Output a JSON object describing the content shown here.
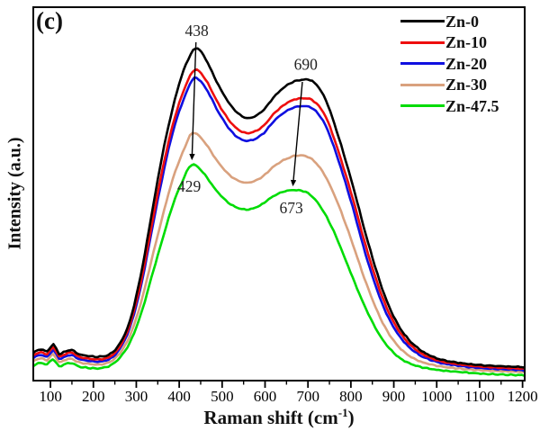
{
  "panel_label": "(c)",
  "chart_data": {
    "type": "line",
    "title": "",
    "xlabel": {
      "main": "Raman shift (cm",
      "sup": "-1",
      "close": ")"
    },
    "ylabel": "Intensity (a.u.)",
    "x_ticks": [
      100,
      200,
      300,
      400,
      500,
      600,
      700,
      800,
      900,
      1000,
      1100,
      1200
    ],
    "x_range": [
      60,
      1205
    ],
    "ylim": [
      0,
      100
    ],
    "intensity_units": "arbitrary units (normalized 0-100)",
    "grid": false,
    "legend": {
      "position": "top-right",
      "entries": [
        {
          "label": "Zn-0",
          "color": "#000000"
        },
        {
          "label": "Zn-10",
          "color": "#ee0e0e"
        },
        {
          "label": "Zn-20",
          "color": "#0f0fe0"
        },
        {
          "label": "Zn-30",
          "color": "#d9a17e"
        },
        {
          "label": "Zn-47.5",
          "color": "#00dc05"
        }
      ]
    },
    "series": [
      {
        "name": "Zn-0",
        "color": "#000000",
        "peak1": 438,
        "peak2": 690,
        "points": [
          [
            60,
            7.5
          ],
          [
            78,
            8.4
          ],
          [
            92,
            7.8
          ],
          [
            107,
            9.7
          ],
          [
            120,
            7.2
          ],
          [
            136,
            7.9
          ],
          [
            150,
            8.2
          ],
          [
            166,
            7.1
          ],
          [
            188,
            6.6
          ],
          [
            215,
            6.4
          ],
          [
            240,
            7.2
          ],
          [
            262,
            10
          ],
          [
            285,
            16
          ],
          [
            310,
            28
          ],
          [
            335,
            44
          ],
          [
            360,
            60
          ],
          [
            385,
            73
          ],
          [
            410,
            83
          ],
          [
            438,
            89
          ],
          [
            462,
            86
          ],
          [
            492,
            79
          ],
          [
            525,
            73
          ],
          [
            558,
            70.3
          ],
          [
            592,
            72
          ],
          [
            625,
            76.5
          ],
          [
            658,
            79.6
          ],
          [
            690,
            80.6
          ],
          [
            715,
            79.8
          ],
          [
            742,
            75
          ],
          [
            772,
            65
          ],
          [
            805,
            52
          ],
          [
            840,
            37
          ],
          [
            878,
            23
          ],
          [
            915,
            14
          ],
          [
            955,
            8.8
          ],
          [
            1000,
            6
          ],
          [
            1050,
            4.8
          ],
          [
            1110,
            4.1
          ],
          [
            1205,
            3.6
          ]
        ]
      },
      {
        "name": "Zn-10",
        "color": "#ee0e0e",
        "peak1": 436,
        "peak2": 688,
        "points": [
          [
            60,
            6.8
          ],
          [
            78,
            7.6
          ],
          [
            92,
            7.1
          ],
          [
            107,
            8.9
          ],
          [
            120,
            6.5
          ],
          [
            136,
            7.2
          ],
          [
            150,
            7.5
          ],
          [
            166,
            6.4
          ],
          [
            188,
            5.9
          ],
          [
            215,
            5.7
          ],
          [
            240,
            6.5
          ],
          [
            262,
            9.2
          ],
          [
            285,
            15
          ],
          [
            310,
            26
          ],
          [
            335,
            41
          ],
          [
            360,
            56
          ],
          [
            385,
            68.5
          ],
          [
            410,
            77.5
          ],
          [
            436,
            83.2
          ],
          [
            462,
            80.5
          ],
          [
            492,
            74
          ],
          [
            525,
            68.5
          ],
          [
            557,
            66.3
          ],
          [
            592,
            67.8
          ],
          [
            625,
            72
          ],
          [
            658,
            74.8
          ],
          [
            688,
            75.6
          ],
          [
            714,
            74.8
          ],
          [
            742,
            70.5
          ],
          [
            772,
            61
          ],
          [
            805,
            48.5
          ],
          [
            840,
            34
          ],
          [
            878,
            21
          ],
          [
            915,
            12.8
          ],
          [
            955,
            8
          ],
          [
            1000,
            5.5
          ],
          [
            1050,
            4.4
          ],
          [
            1110,
            3.7
          ],
          [
            1205,
            3.2
          ]
        ]
      },
      {
        "name": "Zn-20",
        "color": "#0f0fe0",
        "peak1": 435,
        "peak2": 686,
        "points": [
          [
            60,
            6.1
          ],
          [
            78,
            6.9
          ],
          [
            92,
            6.4
          ],
          [
            107,
            8.1
          ],
          [
            120,
            5.9
          ],
          [
            136,
            6.5
          ],
          [
            150,
            6.8
          ],
          [
            166,
            5.8
          ],
          [
            188,
            5.3
          ],
          [
            215,
            5.1
          ],
          [
            240,
            5.9
          ],
          [
            262,
            8.6
          ],
          [
            285,
            14.2
          ],
          [
            310,
            24.8
          ],
          [
            335,
            39.5
          ],
          [
            360,
            54
          ],
          [
            385,
            66.5
          ],
          [
            410,
            75.2
          ],
          [
            435,
            81
          ],
          [
            462,
            78.3
          ],
          [
            492,
            71.8
          ],
          [
            525,
            66.3
          ],
          [
            557,
            64.2
          ],
          [
            592,
            65.8
          ],
          [
            625,
            70
          ],
          [
            658,
            72.7
          ],
          [
            686,
            73.5
          ],
          [
            713,
            72.7
          ],
          [
            741,
            68.3
          ],
          [
            771,
            59
          ],
          [
            804,
            46.5
          ],
          [
            839,
            32
          ],
          [
            877,
            19.5
          ],
          [
            914,
            11.8
          ],
          [
            954,
            7.3
          ],
          [
            1000,
            5
          ],
          [
            1050,
            4
          ],
          [
            1110,
            3.3
          ],
          [
            1205,
            2.8
          ]
        ]
      },
      {
        "name": "Zn-30",
        "color": "#d9a17e",
        "peak1": 431,
        "peak2": 680,
        "points": [
          [
            60,
            5.2
          ],
          [
            78,
            6.0
          ],
          [
            92,
            5.5
          ],
          [
            106,
            7.0
          ],
          [
            120,
            5.0
          ],
          [
            136,
            5.6
          ],
          [
            150,
            5.8
          ],
          [
            166,
            4.9
          ],
          [
            188,
            4.5
          ],
          [
            215,
            4.3
          ],
          [
            240,
            5.1
          ],
          [
            262,
            7.4
          ],
          [
            285,
            12
          ],
          [
            310,
            20.5
          ],
          [
            335,
            32
          ],
          [
            360,
            43.5
          ],
          [
            385,
            54
          ],
          [
            408,
            61
          ],
          [
            431,
            66.3
          ],
          [
            458,
            64
          ],
          [
            490,
            58.6
          ],
          [
            522,
            54.6
          ],
          [
            556,
            53
          ],
          [
            590,
            54.3
          ],
          [
            622,
            57.5
          ],
          [
            652,
            59.5
          ],
          [
            678,
            60.3
          ],
          [
            705,
            59.6
          ],
          [
            734,
            56
          ],
          [
            766,
            48.5
          ],
          [
            800,
            38
          ],
          [
            836,
            26
          ],
          [
            874,
            15.5
          ],
          [
            912,
            9
          ],
          [
            952,
            5.6
          ],
          [
            1000,
            4
          ],
          [
            1055,
            3.2
          ],
          [
            1115,
            2.7
          ],
          [
            1205,
            2.3
          ]
        ]
      },
      {
        "name": "Zn-47.5",
        "color": "#00dc05",
        "peak1": 429,
        "peak2": 673,
        "points": [
          [
            60,
            4.0
          ],
          [
            78,
            4.8
          ],
          [
            92,
            4.3
          ],
          [
            105,
            5.7
          ],
          [
            120,
            3.9
          ],
          [
            136,
            4.5
          ],
          [
            150,
            4.7
          ],
          [
            166,
            3.8
          ],
          [
            188,
            3.4
          ],
          [
            215,
            3.3
          ],
          [
            240,
            4.1
          ],
          [
            262,
            6.2
          ],
          [
            285,
            10.2
          ],
          [
            310,
            17.5
          ],
          [
            335,
            27.5
          ],
          [
            360,
            37.5
          ],
          [
            385,
            47
          ],
          [
            406,
            53
          ],
          [
            429,
            57.8
          ],
          [
            455,
            55.8
          ],
          [
            486,
            51
          ],
          [
            520,
            47.2
          ],
          [
            556,
            45.8
          ],
          [
            588,
            46.9
          ],
          [
            618,
            49.3
          ],
          [
            646,
            50.7
          ],
          [
            673,
            51
          ],
          [
            700,
            50.2
          ],
          [
            728,
            46.8
          ],
          [
            760,
            40
          ],
          [
            794,
            30.5
          ],
          [
            830,
            20.5
          ],
          [
            868,
            12
          ],
          [
            906,
            6.8
          ],
          [
            946,
            4.2
          ],
          [
            1000,
            2.9
          ],
          [
            1055,
            2.3
          ],
          [
            1115,
            1.8
          ],
          [
            1205,
            1.4
          ]
        ]
      }
    ],
    "annotations": {
      "peak_labels": [
        {
          "text": "438",
          "x": 441,
          "u": 92.3
        },
        {
          "text": "690",
          "x": 695,
          "u": 83.3
        },
        {
          "text": "429",
          "x": 423,
          "u": 50.6
        },
        {
          "text": "673",
          "x": 661,
          "u": 44.8
        }
      ],
      "arrows": [
        {
          "from": {
            "x": 439,
            "u": 90.6
          },
          "to": {
            "x": 430,
            "u": 60.5
          }
        },
        {
          "from": {
            "x": 687,
            "u": 80.0
          },
          "to": {
            "x": 666,
            "u": 53.5
          }
        }
      ]
    }
  }
}
